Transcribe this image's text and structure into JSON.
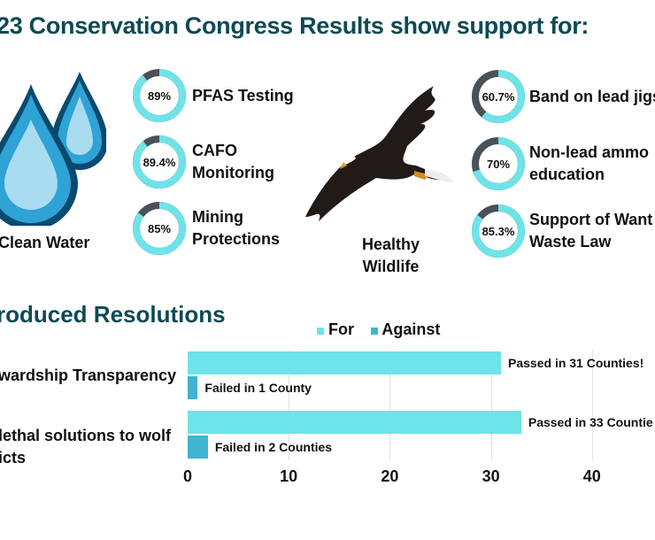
{
  "title": "23 Conservation Congress Results show support for:",
  "colors": {
    "teal": "#6ee3e8",
    "against": "#40b4d0",
    "dark": "#4b5159",
    "heading": "#0d4a55"
  },
  "water": {
    "label": "Clean Water",
    "icon": "water-drops-icon",
    "items": [
      {
        "pct": 89,
        "pct_label": "89%",
        "lines": [
          "PFAS Testing"
        ]
      },
      {
        "pct": 89.4,
        "pct_label": "89.4%",
        "lines": [
          "CAFO",
          "Monitoring"
        ]
      },
      {
        "pct": 85,
        "pct_label": "85%",
        "lines": [
          "Mining",
          "Protections"
        ]
      }
    ]
  },
  "wildlife": {
    "label_lines": [
      "Healthy",
      "Wildlife"
    ],
    "icon": "eagle-icon",
    "items": [
      {
        "pct": 60.7,
        "pct_label": "60.7%",
        "lines": [
          "Band on lead jigs"
        ]
      },
      {
        "pct": 70,
        "pct_label": "70%",
        "lines": [
          "Non-lead ammo",
          "education"
        ]
      },
      {
        "pct": 85.3,
        "pct_label": "85.3%",
        "lines": [
          "Support of Want",
          "Waste Law"
        ]
      }
    ]
  },
  "chart_data": {
    "type": "bar",
    "orientation": "horizontal",
    "title": "roduced Resolutions",
    "categories": [
      [
        "wardship Transparency"
      ],
      [
        "lethal solutions to wolf",
        "icts"
      ]
    ],
    "series": [
      {
        "name": "For",
        "values": [
          31,
          33
        ],
        "labels": [
          "Passed in 31 Counties!",
          "Passed in 33 Countie"
        ]
      },
      {
        "name": "Against",
        "values": [
          1,
          2
        ],
        "labels": [
          "Failed in 1 County",
          "Failed in 2 Counties"
        ]
      }
    ],
    "xlim": [
      0,
      40
    ],
    "xticks": [
      0,
      10,
      20,
      30,
      40
    ],
    "grid": true,
    "legend": "top"
  }
}
